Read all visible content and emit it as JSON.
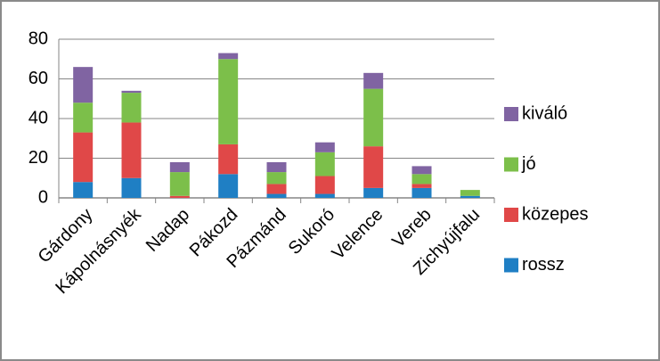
{
  "chart_data": {
    "type": "stacked_bar",
    "categories": [
      "Gárdony",
      "Kápolnásnyék",
      "Nadap",
      "Pákozd",
      "Pázmánd",
      "Sukoró",
      "Velence",
      "Vereb",
      "Zichyújfalu"
    ],
    "series": [
      {
        "name": "rossz",
        "color": "#1f7fc4",
        "values": [
          8,
          10,
          0,
          12,
          2,
          2,
          5,
          5,
          1
        ]
      },
      {
        "name": "közepes",
        "color": "#e04848",
        "values": [
          25,
          28,
          1,
          15,
          5,
          9,
          21,
          2,
          0
        ]
      },
      {
        "name": "jó",
        "color": "#7cbf4a",
        "values": [
          15,
          15,
          12,
          43,
          6,
          12,
          29,
          5,
          3
        ]
      },
      {
        "name": "kiváló",
        "color": "#8064a2",
        "values": [
          18,
          1,
          5,
          3,
          5,
          5,
          8,
          4,
          0
        ]
      }
    ],
    "ylim": [
      0,
      80
    ],
    "yticks": [
      0,
      20,
      40,
      60,
      80
    ],
    "grid": true,
    "legend": "right"
  }
}
